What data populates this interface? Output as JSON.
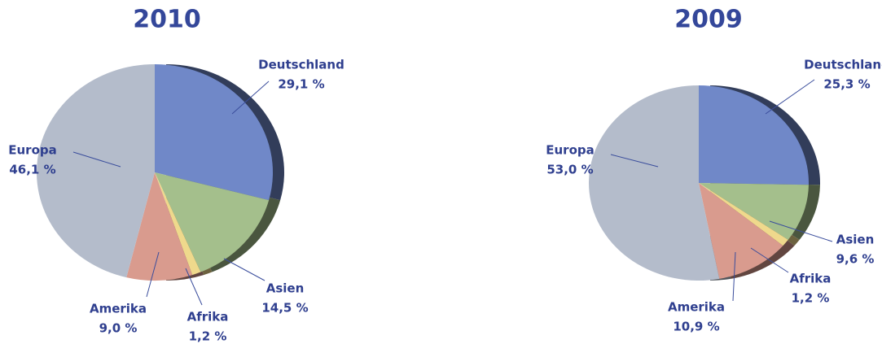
{
  "chart_data": [
    {
      "type": "pie",
      "title": "2010",
      "categories": [
        "Deutschland",
        "Asien",
        "Afrika",
        "Amerika",
        "Europa"
      ],
      "values": [
        29.1,
        14.5,
        1.2,
        9.0,
        46.1
      ],
      "value_labels": [
        "29,1 %",
        "14,5 %",
        "1,2 %",
        "9,0 %",
        "46,1 %"
      ],
      "colors": [
        "#7088c8",
        "#a4bf8c",
        "#efd98c",
        "#d99b8e",
        "#b4bccb"
      ]
    },
    {
      "type": "pie",
      "title": "2009",
      "categories": [
        "Deutschland",
        "Asien",
        "Afrika",
        "Amerika",
        "Europa"
      ],
      "values": [
        25.3,
        9.6,
        1.2,
        10.9,
        53.0
      ],
      "value_labels": [
        "25,3 %",
        "9,6 %",
        "1,2 %",
        "10,9 %",
        "53,0 %"
      ],
      "colors": [
        "#7088c8",
        "#a4bf8c",
        "#efd98c",
        "#d99b8e",
        "#b4bccb"
      ]
    }
  ]
}
